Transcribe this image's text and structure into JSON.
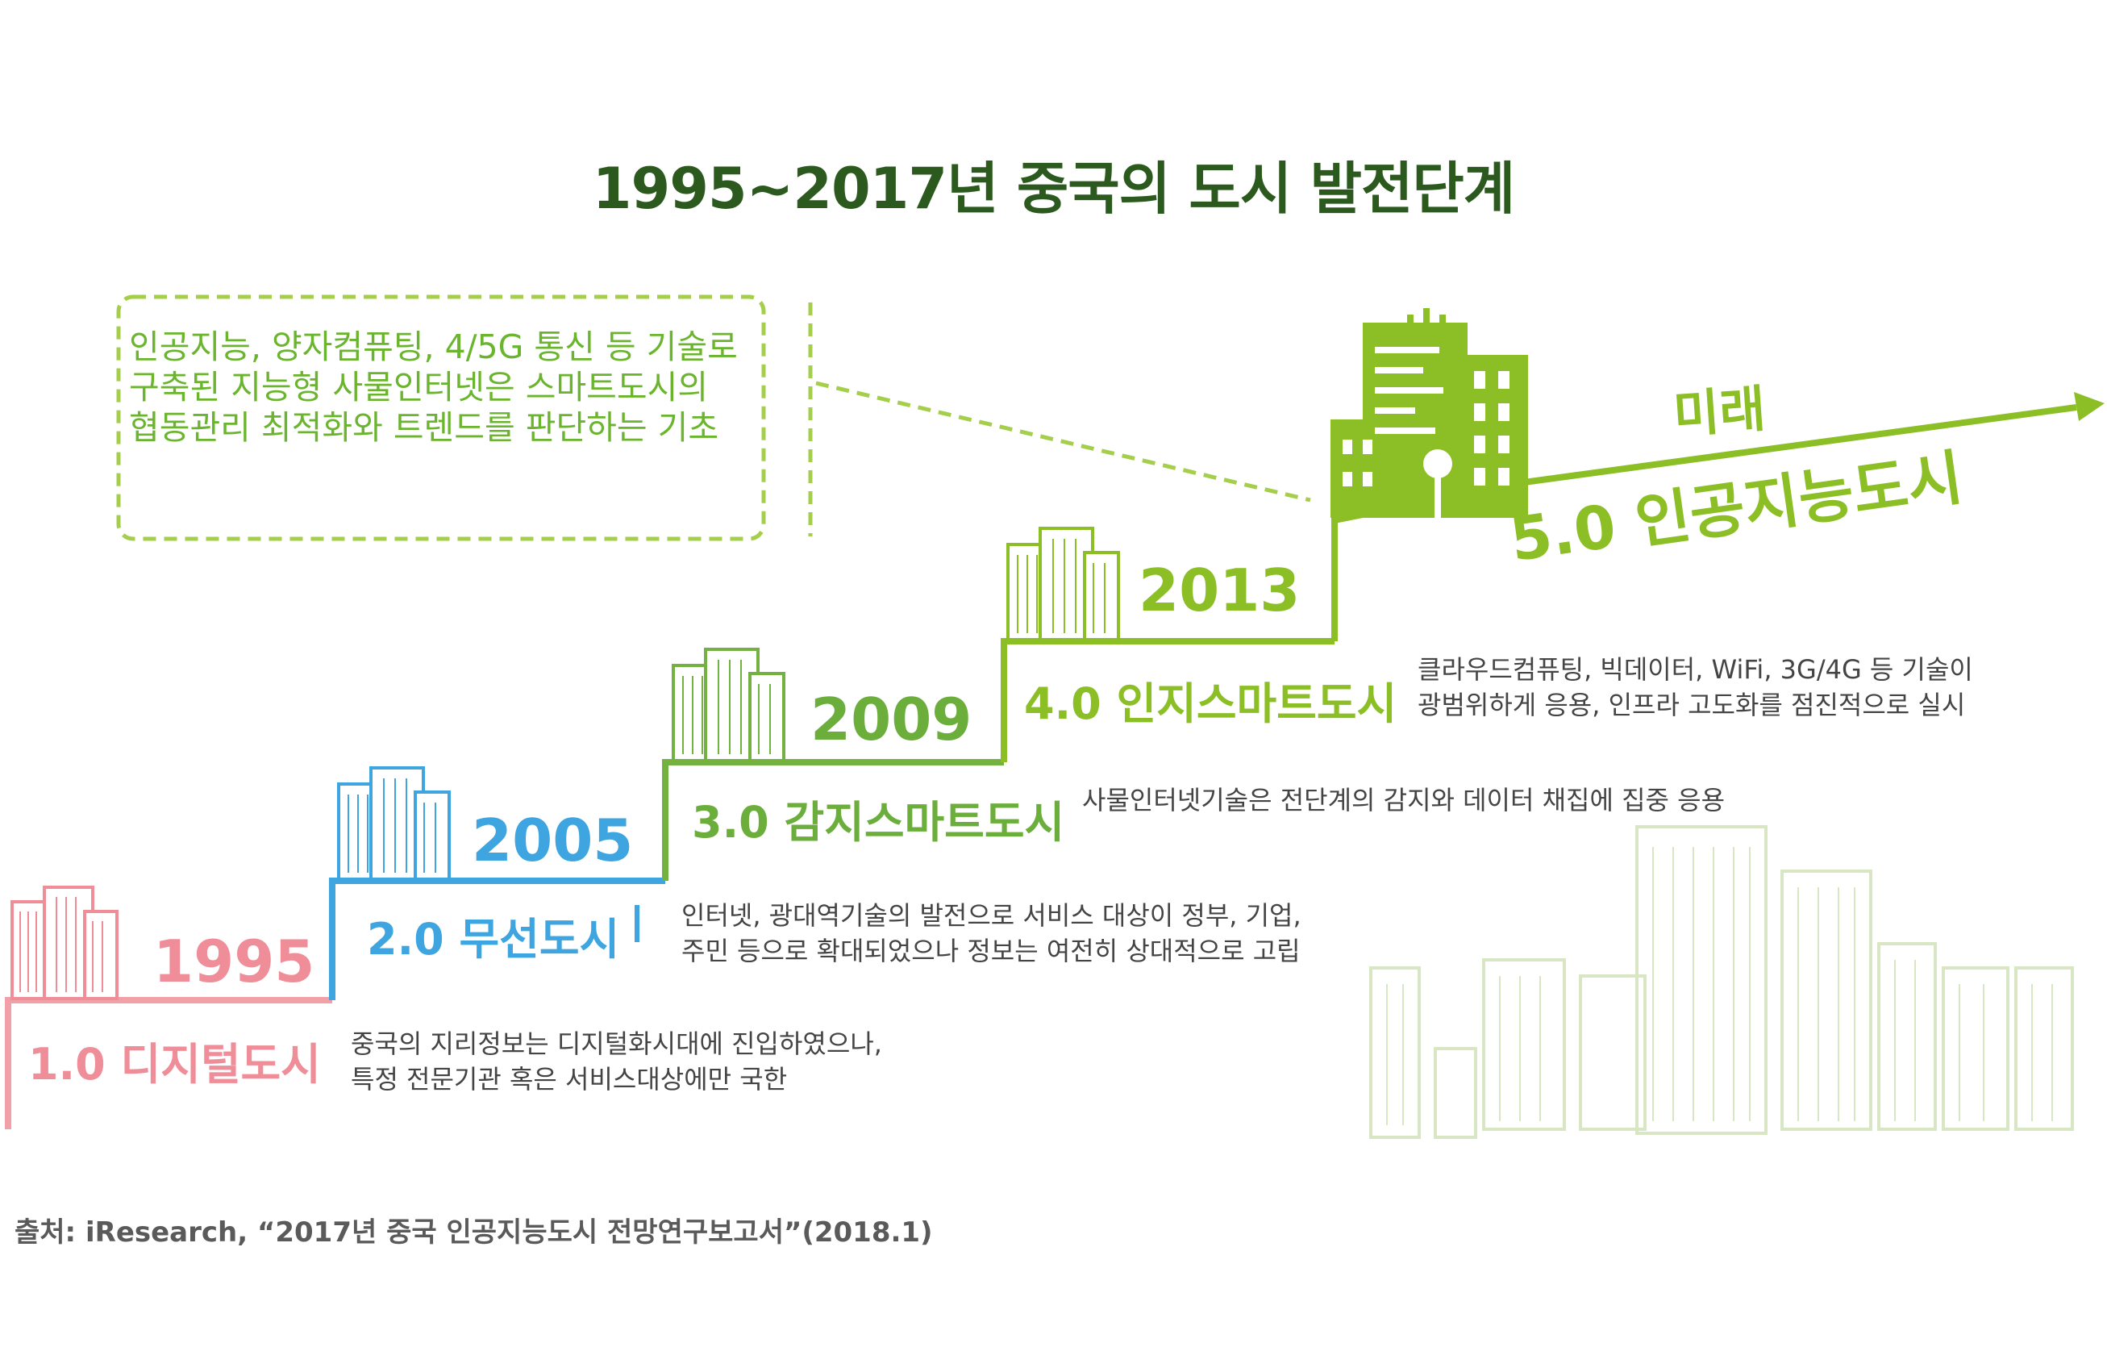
{
  "title": "1995~2017년 중국의 도시 발전단계",
  "callout": "인공지능, 양자컴퓨팅, 4/5G 통신 등 기술로 구축된 지능형 사물인터넷은 스마트도시의 협동관리 최적화와 트렌드를 판단하는 기초",
  "future": {
    "label": "미래",
    "stage": "5.0 인공지능도시"
  },
  "stages": [
    {
      "year": "1995",
      "label": "1.0 디지털도시",
      "desc": [
        "중국의 지리정보는 디지털화시대에 진입하였으나,",
        "특정 전문기관 혹은 서비스대상에만 국한"
      ],
      "color": "#ef8e98"
    },
    {
      "year": "2005",
      "label": "2.0 무선도시",
      "desc": [
        "인터넷, 광대역기술의 발전으로 서비스 대상이 정부, 기업,",
        "주민 등으로 확대되었으나 정보는 여전히 상대적으로 고립"
      ],
      "color": "#3ea5e0"
    },
    {
      "year": "2009",
      "label": "3.0 감지스마트도시",
      "desc": [
        "사물인터넷기술은 전단계의 감지와 데이터 채집에 집중 응용"
      ],
      "color": "#6cae3c"
    },
    {
      "year": "2013",
      "label": "4.0 인지스마트도시",
      "desc": [
        "클라우드컴퓨팅, 빅데이터, WiFi, 3G/4G 등 기술이",
        "광범위하게 응용, 인프라 고도화를 점진적으로 실시"
      ],
      "color": "#8cbf26"
    }
  ],
  "source": "출처: iResearch, “2017년 중국 인공지능도시 전망연구보고서”(2018.1)",
  "icons": [
    "building-icon",
    "arrow-icon"
  ]
}
